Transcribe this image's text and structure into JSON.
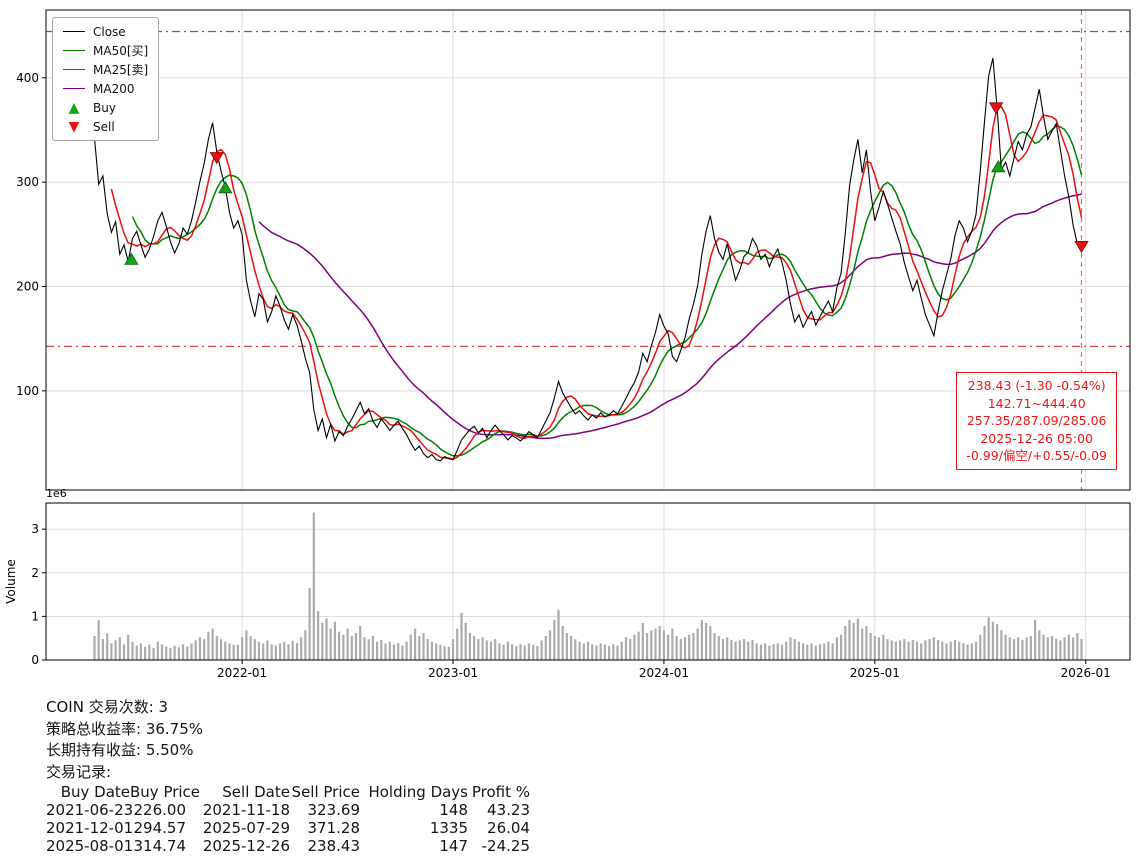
{
  "chart_data": {
    "type": "line",
    "title": "",
    "xlim": [
      2021.07,
      2026.21
    ],
    "price_axis": {
      "ylim": [
        5,
        465
      ],
      "ticks": [
        100,
        200,
        300,
        400
      ]
    },
    "volume_axis": {
      "ylim": [
        0,
        3.6
      ],
      "ticks": [
        0,
        1,
        2,
        3
      ],
      "offset_label": "1e6",
      "ylabel": "Volume"
    },
    "x_ticks": [
      {
        "t": 2022.0,
        "label": "2022-01"
      },
      {
        "t": 2023.0,
        "label": "2023-01"
      },
      {
        "t": 2024.0,
        "label": "2024-01"
      },
      {
        "t": 2025.0,
        "label": "2025-01"
      },
      {
        "t": 2026.0,
        "label": "2026-01"
      }
    ],
    "legend": [
      {
        "label": "Close",
        "type": "line",
        "color": "#000000"
      },
      {
        "label": "MA50[买]",
        "type": "line",
        "color": "#008000"
      },
      {
        "label": "MA25[卖]",
        "type": "line",
        "color": "#e81010"
      },
      {
        "label": "MA200",
        "type": "line",
        "color": "#800080"
      },
      {
        "label": "Buy",
        "type": "triangle-up",
        "color": "#16a016"
      },
      {
        "label": "Sell",
        "type": "triangle-down",
        "color": "#e81010"
      }
    ],
    "hlines": [
      {
        "value": 444.4,
        "color": "#2e8b2e",
        "style": "dashdot"
      },
      {
        "value": 142.71,
        "color": "#e03131",
        "style": "dashdot"
      }
    ],
    "vline": {
      "t": 2025.98,
      "color": "#f26060",
      "style": "dashed"
    },
    "series": {
      "t_start": 2021.3,
      "t_step": 0.02,
      "close": [
        342,
        298,
        306,
        270,
        252,
        262,
        231,
        240,
        224,
        246,
        253,
        240,
        228,
        236,
        248,
        263,
        271,
        258,
        243,
        232,
        241,
        256,
        250,
        263,
        281,
        301,
        318,
        341,
        357,
        329,
        311,
        295,
        271,
        256,
        263,
        250,
        206,
        186,
        171,
        193,
        188,
        166,
        176,
        191,
        181,
        168,
        159,
        173,
        163,
        148,
        131,
        118,
        82,
        62,
        73,
        55,
        68,
        52,
        61,
        57,
        66,
        73,
        81,
        89,
        78,
        83,
        71,
        65,
        73,
        68,
        62,
        67,
        71,
        64,
        58,
        50,
        43,
        47,
        40,
        36,
        39,
        34,
        33,
        37,
        35,
        34,
        43,
        53,
        58,
        63,
        66,
        60,
        64,
        55,
        62,
        67,
        62,
        58,
        53,
        57,
        55,
        52,
        56,
        61,
        58,
        55,
        63,
        71,
        79,
        93,
        109,
        98,
        91,
        84,
        78,
        81,
        76,
        72,
        77,
        74,
        79,
        75,
        77,
        81,
        78,
        85,
        93,
        101,
        108,
        118,
        136,
        128,
        143,
        156,
        173,
        162,
        155,
        133,
        128,
        139,
        151,
        169,
        183,
        201,
        231,
        253,
        268,
        246,
        233,
        226,
        241,
        223,
        206,
        216,
        229,
        233,
        246,
        239,
        226,
        231,
        219,
        229,
        236,
        223,
        206,
        183,
        166,
        173,
        161,
        169,
        176,
        163,
        171,
        179,
        186,
        176,
        199,
        213,
        251,
        296,
        321,
        341,
        309,
        331,
        291,
        263,
        276,
        291,
        279,
        266,
        253,
        241,
        223,
        209,
        196,
        206,
        189,
        173,
        163,
        153,
        176,
        196,
        211,
        226,
        249,
        263,
        256,
        243,
        253,
        269,
        311,
        358,
        402,
        419,
        371,
        312,
        319,
        306,
        323,
        339,
        331,
        346,
        353,
        371,
        389,
        363,
        341,
        349,
        356,
        331,
        306,
        286,
        259,
        241,
        238.43
      ],
      "volume_1e6": [
        0.55,
        0.92,
        0.48,
        0.61,
        0.38,
        0.45,
        0.52,
        0.36,
        0.58,
        0.42,
        0.33,
        0.38,
        0.3,
        0.35,
        0.28,
        0.42,
        0.36,
        0.31,
        0.27,
        0.33,
        0.29,
        0.36,
        0.31,
        0.38,
        0.45,
        0.52,
        0.48,
        0.65,
        0.72,
        0.55,
        0.48,
        0.42,
        0.38,
        0.35,
        0.35,
        0.52,
        0.68,
        0.55,
        0.48,
        0.42,
        0.38,
        0.45,
        0.36,
        0.33,
        0.38,
        0.42,
        0.36,
        0.44,
        0.39,
        0.52,
        0.68,
        1.65,
        3.38,
        1.12,
        0.85,
        0.95,
        0.72,
        0.88,
        0.65,
        0.58,
        0.72,
        0.55,
        0.62,
        0.78,
        0.52,
        0.48,
        0.55,
        0.42,
        0.46,
        0.38,
        0.42,
        0.35,
        0.39,
        0.33,
        0.42,
        0.58,
        0.72,
        0.55,
        0.62,
        0.48,
        0.42,
        0.38,
        0.35,
        0.32,
        0.3,
        0.48,
        0.72,
        1.08,
        0.85,
        0.62,
        0.55,
        0.48,
        0.52,
        0.45,
        0.42,
        0.48,
        0.38,
        0.35,
        0.42,
        0.36,
        0.32,
        0.36,
        0.33,
        0.38,
        0.35,
        0.32,
        0.45,
        0.55,
        0.68,
        0.92,
        1.15,
        0.78,
        0.62,
        0.55,
        0.48,
        0.42,
        0.38,
        0.42,
        0.36,
        0.33,
        0.38,
        0.35,
        0.32,
        0.36,
        0.33,
        0.42,
        0.52,
        0.48,
        0.58,
        0.65,
        0.85,
        0.62,
        0.68,
        0.72,
        0.78,
        0.68,
        0.58,
        0.72,
        0.55,
        0.48,
        0.52,
        0.58,
        0.62,
        0.72,
        0.92,
        0.85,
        0.78,
        0.62,
        0.55,
        0.48,
        0.52,
        0.46,
        0.42,
        0.45,
        0.48,
        0.42,
        0.46,
        0.38,
        0.35,
        0.38,
        0.33,
        0.36,
        0.38,
        0.35,
        0.42,
        0.52,
        0.48,
        0.42,
        0.38,
        0.35,
        0.38,
        0.33,
        0.36,
        0.38,
        0.42,
        0.38,
        0.52,
        0.58,
        0.78,
        0.92,
        0.85,
        0.95,
        0.72,
        0.78,
        0.62,
        0.55,
        0.52,
        0.58,
        0.48,
        0.45,
        0.42,
        0.45,
        0.48,
        0.42,
        0.46,
        0.42,
        0.38,
        0.45,
        0.48,
        0.52,
        0.46,
        0.42,
        0.38,
        0.42,
        0.46,
        0.42,
        0.38,
        0.35,
        0.38,
        0.42,
        0.58,
        0.78,
        0.98,
        0.88,
        0.82,
        0.68,
        0.58,
        0.52,
        0.48,
        0.52,
        0.46,
        0.52,
        0.55,
        0.92,
        0.68,
        0.58,
        0.52,
        0.55,
        0.48,
        0.45,
        0.52,
        0.58,
        0.52,
        0.62,
        0.48
      ],
      "ma": [
        {
          "name": "MA50",
          "window": 10,
          "color": "#008000"
        },
        {
          "name": "MA25",
          "window": 5,
          "color": "#e81010"
        },
        {
          "name": "MA200",
          "window": 40,
          "color": "#800080"
        }
      ]
    },
    "markers": {
      "buy": [
        {
          "t": 2021.475,
          "price": 226.0
        },
        {
          "t": 2021.92,
          "price": 294.57
        },
        {
          "t": 2025.585,
          "price": 314.74
        }
      ],
      "sell": [
        {
          "t": 2021.88,
          "price": 323.69
        },
        {
          "t": 2025.575,
          "price": 371.28
        },
        {
          "t": 2025.98,
          "price": 238.43
        }
      ]
    },
    "volume_color": "#ababab",
    "grid_color": "#d9d9d9"
  },
  "info_box": {
    "color": "#f01515",
    "lines": [
      "238.43 (-1.30 -0.54%)",
      "142.71~444.40",
      "257.35/287.09/285.06",
      "2025-12-26 05:00",
      "-0.99/偏空/+0.55/-0.09"
    ]
  },
  "summary": {
    "symbol": "COIN",
    "lines": [
      "COIN 交易次数: 3",
      "策略总收益率: 36.75%",
      "长期持有收益: 5.50%",
      "交易记录:"
    ],
    "table": {
      "headers": [
        "Buy Date",
        "Buy Price",
        "Sell Date",
        "Sell Price",
        "Holding Days",
        "Profit %"
      ],
      "rows": [
        [
          "2021-06-23",
          "226.00",
          "2021-11-18",
          "323.69",
          "148",
          "43.23"
        ],
        [
          "2021-12-01",
          "294.57",
          "2025-07-29",
          "371.28",
          "1335",
          "26.04"
        ],
        [
          "2025-08-01",
          "314.74",
          "2025-12-26",
          "238.43",
          "147",
          "-24.25"
        ]
      ]
    }
  }
}
